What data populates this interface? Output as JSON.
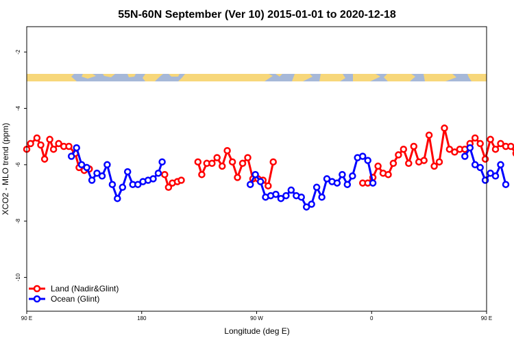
{
  "chart_data": {
    "type": "line",
    "title": "55N-60N September (Ver 10)   2015-01-01 to 2020-12-18",
    "xlabel": "Longitude (deg E)",
    "ylabel": "XCO2 - MLO trend (ppm)",
    "xlim": [
      90,
      450
    ],
    "ylim": [
      -11.2,
      -1.1
    ],
    "x_ticks": [
      {
        "value": 90,
        "label": "90 E"
      },
      {
        "value": 180,
        "label": "180"
      },
      {
        "value": 270,
        "label": "90 W"
      },
      {
        "value": 360,
        "label": "0"
      },
      {
        "value": 450,
        "label": "90 E"
      },
      {
        "value": 540,
        "label": "180"
      }
    ],
    "y_ticks": [
      -2,
      -4,
      -6,
      -8,
      -10
    ],
    "colors": {
      "land": "#ff0000",
      "ocean": "#0000ff",
      "map_land": "#f7d77a",
      "map_ocean": "#a6b8d8"
    },
    "legend_position": "bottom-left",
    "series": [
      {
        "name": "Land (Nadir&Glint)",
        "color": "#ff0000",
        "points": [
          [
            90,
            -5.45
          ],
          [
            93,
            -5.25
          ],
          [
            98,
            -5.05
          ],
          [
            101,
            -5.3
          ],
          [
            104,
            -5.8
          ],
          [
            108,
            -5.1
          ],
          [
            111,
            -5.45
          ],
          [
            115,
            -5.25
          ],
          [
            119,
            -5.35
          ],
          [
            123,
            -5.35
          ],
          [
            128,
            -5.6
          ],
          [
            131,
            -6.1
          ],
          [
            135,
            -6.2
          ],
          [
            139,
            -6.15
          ],
          null,
          [
            198,
            -6.35
          ],
          [
            201,
            -6.8
          ],
          [
            204,
            -6.65
          ],
          [
            208,
            -6.6
          ],
          [
            211,
            -6.55
          ],
          null,
          [
            224,
            -5.9
          ],
          [
            227,
            -6.35
          ],
          [
            231,
            -5.95
          ],
          [
            235,
            -5.95
          ],
          [
            239,
            -5.75
          ],
          [
            243,
            -6.05
          ],
          [
            247,
            -5.5
          ],
          [
            251,
            -5.9
          ],
          [
            255,
            -6.45
          ],
          [
            259,
            -5.95
          ],
          [
            263,
            -5.75
          ],
          [
            267,
            -6.5
          ],
          [
            271,
            -6.5
          ],
          [
            275,
            -6.55
          ],
          [
            279,
            -6.75
          ],
          [
            283,
            -5.9
          ],
          null,
          [
            353,
            -6.65
          ],
          [
            357,
            -6.65
          ],
          [
            361,
            -6.45
          ],
          [
            365,
            -6.05
          ],
          [
            369,
            -6.3
          ],
          [
            373,
            -6.35
          ],
          [
            377,
            -5.95
          ],
          [
            381,
            -5.65
          ],
          [
            385,
            -5.45
          ],
          [
            389,
            -5.95
          ],
          [
            393,
            -5.35
          ],
          [
            397,
            -5.9
          ],
          [
            401,
            -5.85
          ],
          [
            405,
            -4.95
          ],
          [
            409,
            -6.05
          ],
          [
            413,
            -5.9
          ],
          [
            417,
            -4.7
          ],
          [
            421,
            -5.45
          ],
          [
            425,
            -5.55
          ],
          [
            429,
            -5.45
          ],
          [
            433,
            -5.45
          ],
          [
            437,
            -5.25
          ],
          [
            441,
            -5.05
          ],
          [
            445,
            -5.25
          ],
          [
            449,
            -5.8
          ],
          [
            453,
            -5.1
          ],
          [
            457,
            -5.45
          ],
          [
            461,
            -5.25
          ],
          [
            465,
            -5.35
          ],
          [
            469,
            -5.35
          ],
          [
            473,
            -5.6
          ],
          [
            477,
            -6.1
          ],
          [
            481,
            -6.2
          ],
          [
            485,
            -6.15
          ]
        ]
      },
      {
        "name": "Ocean (Glint)",
        "color": "#0000ff",
        "points": [
          [
            125,
            -5.7
          ],
          [
            129,
            -5.4
          ],
          [
            133,
            -6.0
          ],
          [
            137,
            -6.1
          ],
          [
            141,
            -6.55
          ],
          [
            145,
            -6.3
          ],
          [
            149,
            -6.4
          ],
          [
            153,
            -6.0
          ],
          [
            157,
            -6.7
          ],
          [
            161,
            -7.2
          ],
          [
            165,
            -6.8
          ],
          [
            169,
            -6.25
          ],
          [
            173,
            -6.7
          ],
          [
            177,
            -6.7
          ],
          [
            181,
            -6.6
          ],
          [
            185,
            -6.55
          ],
          [
            189,
            -6.5
          ],
          [
            193,
            -6.3
          ],
          [
            196,
            -5.9
          ],
          null,
          [
            265,
            -6.7
          ],
          [
            269,
            -6.35
          ],
          [
            273,
            -6.6
          ],
          [
            277,
            -7.15
          ],
          [
            281,
            -7.1
          ],
          [
            285,
            -7.05
          ],
          [
            289,
            -7.2
          ],
          [
            293,
            -7.1
          ],
          [
            297,
            -6.9
          ],
          [
            301,
            -7.1
          ],
          [
            305,
            -7.15
          ],
          [
            309,
            -7.5
          ],
          [
            313,
            -7.4
          ],
          [
            317,
            -6.8
          ],
          [
            321,
            -7.15
          ],
          [
            325,
            -6.5
          ],
          [
            329,
            -6.6
          ],
          [
            333,
            -6.65
          ],
          [
            337,
            -6.35
          ],
          [
            341,
            -6.7
          ],
          [
            345,
            -6.4
          ],
          [
            349,
            -5.75
          ],
          [
            353,
            -5.7
          ],
          [
            357,
            -5.85
          ],
          [
            361,
            -6.65
          ],
          null,
          [
            433,
            -5.7
          ],
          [
            437,
            -5.4
          ],
          [
            441,
            -6.0
          ],
          [
            445,
            -6.1
          ],
          [
            449,
            -6.55
          ],
          [
            453,
            -6.3
          ],
          [
            457,
            -6.4
          ],
          [
            461,
            -6.0
          ],
          [
            465,
            -6.7
          ]
        ]
      }
    ]
  }
}
